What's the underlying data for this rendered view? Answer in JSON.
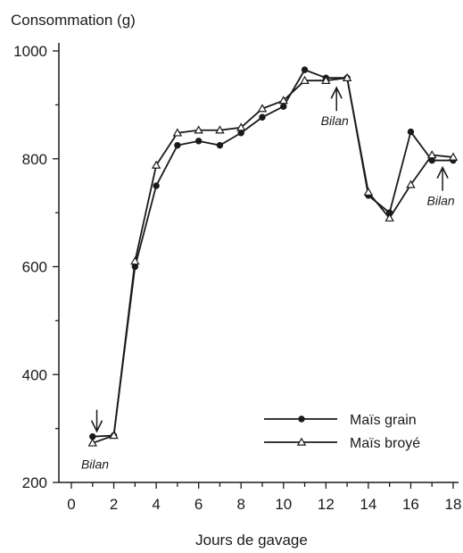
{
  "chart_data": {
    "type": "line",
    "title": "",
    "ylabel": "Consommation (g)",
    "xlabel": "Jours de gavage",
    "xlim": [
      0,
      18
    ],
    "ylim": [
      200,
      1000
    ],
    "xticks": [
      "0",
      "2",
      "4",
      "6",
      "8",
      "10",
      "12",
      "14",
      "16",
      "18"
    ],
    "yticks": [
      "200",
      "400",
      "600",
      "800",
      "1000"
    ],
    "grid": false,
    "legend_position": "bottom-right",
    "series": [
      {
        "name": "Maïs grain",
        "marker": "filled-circle",
        "x": [
          1,
          2,
          3,
          4,
          5,
          6,
          7,
          8,
          9,
          10,
          11,
          12,
          13,
          14,
          15,
          16,
          17,
          18
        ],
        "y": [
          285,
          287,
          600,
          750,
          825,
          833,
          825,
          848,
          877,
          897,
          965,
          950,
          950,
          732,
          700,
          850,
          797,
          797
        ]
      },
      {
        "name": "Maïs broyé",
        "marker": "open-triangle",
        "x": [
          1,
          2,
          3,
          4,
          5,
          6,
          7,
          8,
          9,
          10,
          11,
          12,
          13,
          14,
          15,
          16,
          17,
          18
        ],
        "y": [
          273,
          287,
          610,
          788,
          848,
          853,
          853,
          858,
          893,
          908,
          945,
          945,
          950,
          738,
          690,
          752,
          807,
          803
        ]
      }
    ],
    "annotations": [
      {
        "text": "Bilan",
        "x": 1.2,
        "y": 285,
        "arrow": "down"
      },
      {
        "text": "Bilan",
        "x": 12.5,
        "y": 945,
        "arrow": "up"
      },
      {
        "text": "Bilan",
        "x": 17.5,
        "y": 797,
        "arrow": "up"
      }
    ]
  }
}
